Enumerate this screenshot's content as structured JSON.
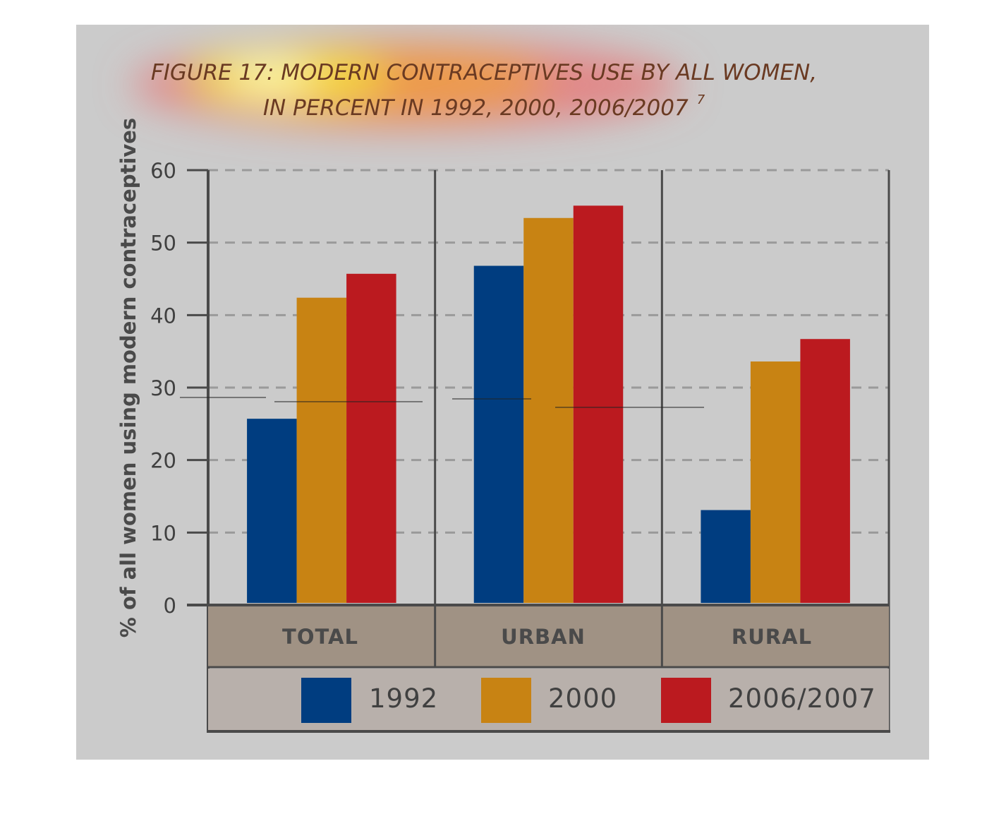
{
  "chart_data": {
    "type": "bar",
    "title": "FIGURE 17: MODERN CONTRACEPTIVES USE BY ALL WOMEN,",
    "subtitle": "IN PERCENT IN 1992, 2000, 2006/2007",
    "title_footnote": "7",
    "ylabel": "% of all women using modern contraceptives",
    "xlabel": "",
    "categories": [
      "TOTAL",
      "URBAN",
      "RURAL"
    ],
    "series": [
      {
        "name": "1992",
        "values": [
          25.7,
          46.8,
          13.1
        ]
      },
      {
        "name": "2000",
        "values": [
          42.4,
          53.4,
          33.6
        ]
      },
      {
        "name": "2006/2007",
        "values": [
          45.7,
          55.1,
          36.7
        ]
      }
    ],
    "ylim": [
      0,
      60
    ],
    "yticks": [
      0,
      10,
      20,
      30,
      40,
      50,
      60
    ],
    "grid": "horizontal dashed",
    "legend_placement": "bottom",
    "colors": {
      "1992": "#003d80",
      "2000": "#c88313",
      "2006/2007": "#bb1a1f",
      "background": "#cbcbcb",
      "category_band": "#a09284",
      "legend_band": "#b8b0ab",
      "title": "#6a3a22",
      "axis": "#4a4a4a"
    }
  }
}
